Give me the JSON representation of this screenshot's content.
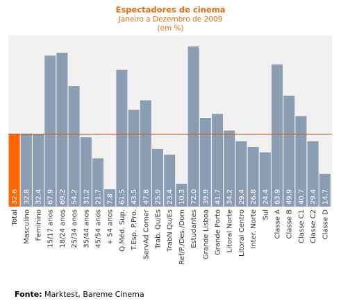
{
  "title": "Espectadores de cinema",
  "subtitle": "Janeiro a Dezembro de 2009",
  "unit_note": "(em %)",
  "source_label": "Fonte:",
  "source_text": "Marktest, Bareme Cinema",
  "colors": {
    "background": "#ffffff",
    "plot_background": "#f1f1f1",
    "bar": "#8b9db3",
    "highlight_bar": "#ff6600",
    "reference_line": "#cc5a10",
    "title": "#e46c0a"
  },
  "chart_data": {
    "type": "bar",
    "title": "Espectadores de cinema",
    "subtitle": "Janeiro a Dezembro de 2009 (em %)",
    "categories": [
      "Total",
      "Masculino",
      "Feminino",
      "15/17 anos",
      "18/24 anos",
      "25/34 anos",
      "35/44 anos",
      "45/54 anos",
      "+ 54  anos",
      "Q.Méd. Sup.",
      "T.Esp. P.Pro.",
      "ServAd Comer",
      "Trab. Qu/Es",
      "TrabN Qu/Es",
      "Ref/P./Des./Dom",
      "Estudantes",
      "Grande Lisboa",
      "Grande Porto",
      "Litoral Norte",
      "Litoral Centro",
      "Inter. Norte",
      "Sul",
      "Classe A",
      "Classe B",
      "Classe C1",
      "Classe C2",
      "Classe D"
    ],
    "values": [
      32.6,
      32.8,
      32.4,
      67.9,
      69.2,
      54.2,
      31.2,
      21.7,
      7.8,
      61.5,
      43.5,
      47.8,
      25.9,
      23.4,
      10.3,
      72.0,
      39.9,
      41.7,
      34.2,
      29.4,
      26.8,
      24.4,
      63.9,
      49.9,
      40.7,
      29.4,
      14.7
    ],
    "value_labels": [
      "32.6",
      "32.8",
      "32.4",
      "67.9",
      "69.2",
      "54.2",
      "31.2",
      "21.7",
      "7.8",
      "61.5",
      "43.5",
      "47.8",
      "25.9",
      "23.4",
      "10.3",
      "72.0",
      "39.9",
      "41.7",
      "34.2",
      "29.4",
      "26.8",
      "24.4",
      "63.9",
      "49.9",
      "40.7",
      "29.4",
      "14.7"
    ],
    "highlight_index": 0,
    "reference_line_value": 32.6,
    "ylim": [
      0,
      77
    ],
    "grid": false,
    "legend": false
  }
}
